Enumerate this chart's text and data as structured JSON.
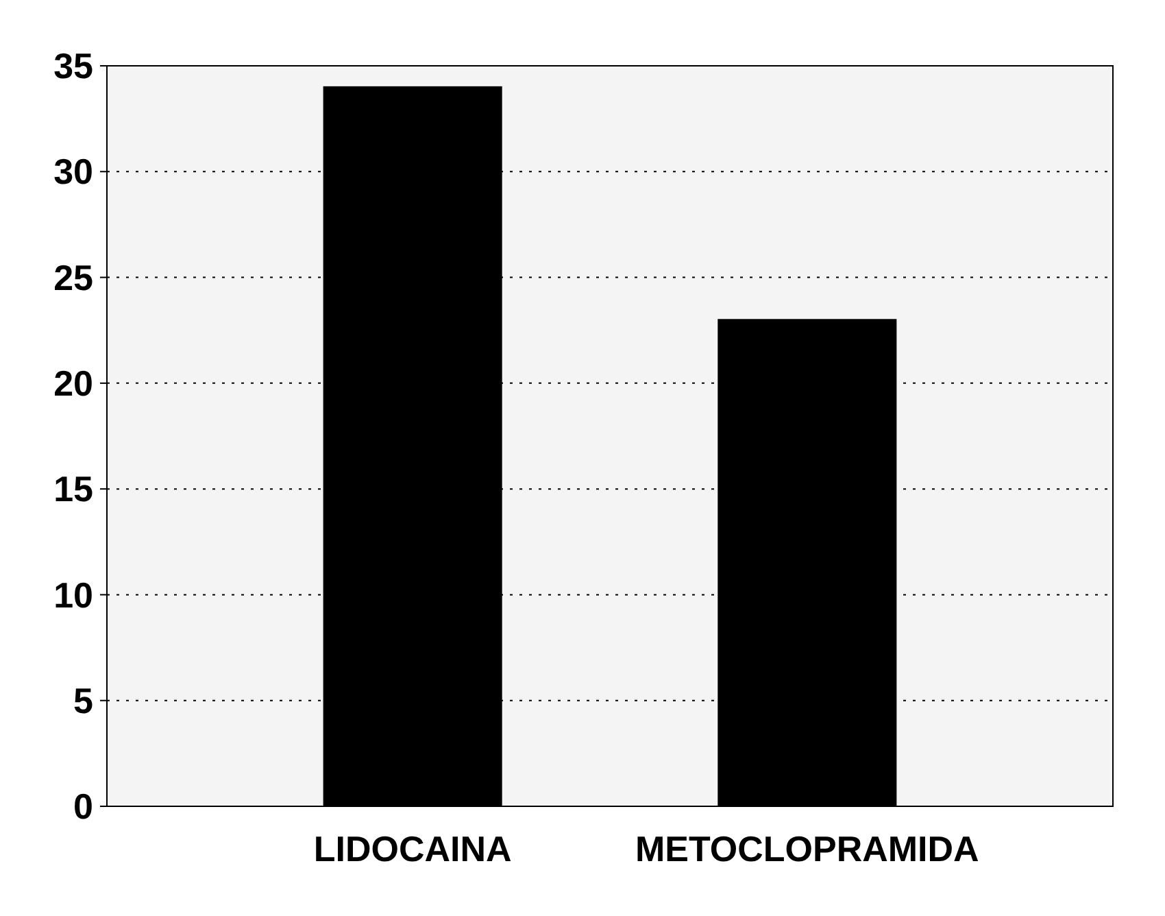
{
  "chart_data": {
    "type": "bar",
    "categories": [
      "LIDOCAINA",
      "METOCLOPRAMIDA"
    ],
    "values": [
      34,
      23
    ],
    "color": "#000000",
    "ylim": [
      0,
      35
    ],
    "yticks": [
      0,
      5,
      10,
      15,
      20,
      25,
      30,
      35
    ],
    "grid": "y"
  }
}
